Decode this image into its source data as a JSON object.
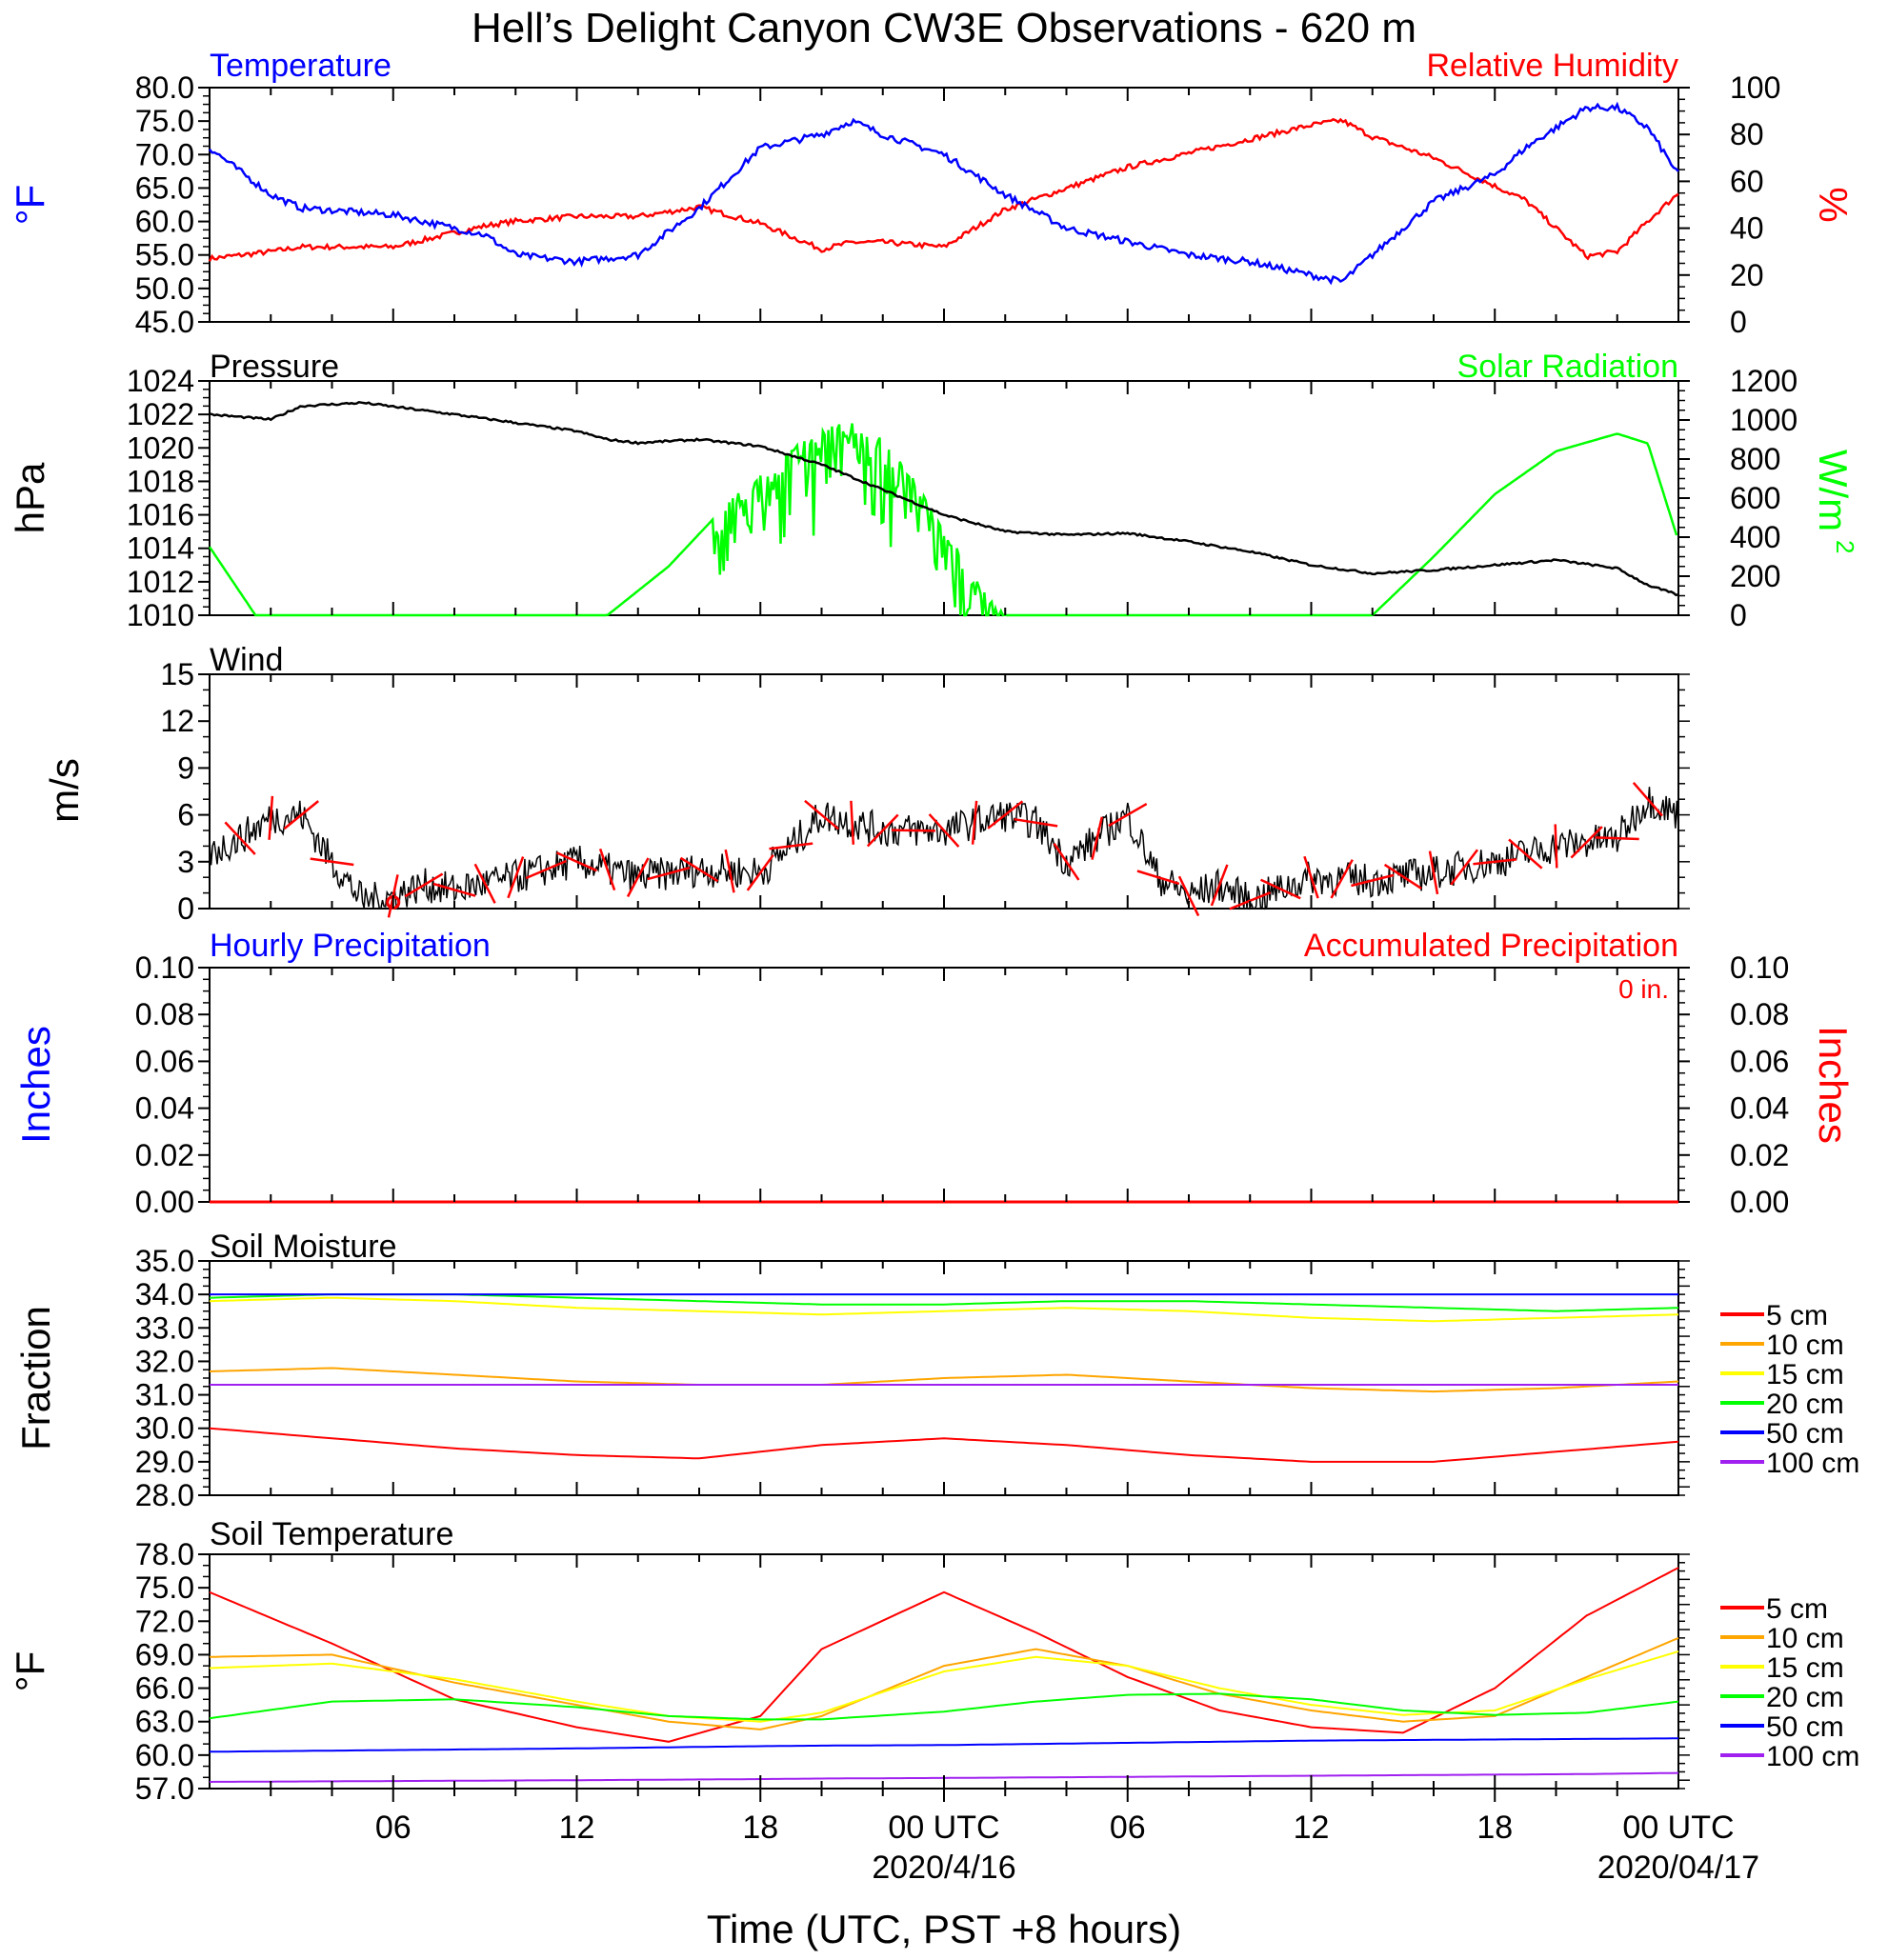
{
  "title": "Hell’s Delight Canyon CW3E Observations - 620 m",
  "x_axis": {
    "label": "Time (UTC, PST +8 hours)",
    "ticks": [
      {
        "hour": 6,
        "label": "06"
      },
      {
        "hour": 12,
        "label": "12"
      },
      {
        "hour": 18,
        "label": "18"
      },
      {
        "hour": 24,
        "label": "00 UTC",
        "sublabel": "2020/4/16"
      },
      {
        "hour": 30,
        "label": "06"
      },
      {
        "hour": 36,
        "label": "12"
      },
      {
        "hour": 42,
        "label": "18"
      },
      {
        "hour": 48,
        "label": "00 UTC",
        "sublabel": "2020/04/17"
      }
    ]
  },
  "panels": {
    "temp_rh": {
      "left_title": "Temperature",
      "right_title": "Relative Humidity",
      "left_units": "°F",
      "right_units": "%",
      "left_ticks": [
        "45.0",
        "50.0",
        "55.0",
        "60.0",
        "65.0",
        "70.0",
        "75.0",
        "80.0"
      ],
      "right_ticks": [
        "0",
        "20",
        "40",
        "60",
        "80",
        "100"
      ]
    },
    "pressure_solar": {
      "left_title": "Pressure",
      "right_title": "Solar Radiation",
      "left_units": "hPa",
      "right_units": "W/m",
      "right_units_sup": "2",
      "left_ticks": [
        "1010",
        "1012",
        "1014",
        "1016",
        "1018",
        "1020",
        "1022",
        "1024"
      ],
      "right_ticks": [
        "0",
        "200",
        "400",
        "600",
        "800",
        "1000",
        "1200"
      ]
    },
    "wind": {
      "left_title": "Wind",
      "left_units": "m/s",
      "left_ticks": [
        "0",
        "3",
        "6",
        "9",
        "12",
        "15"
      ]
    },
    "precip": {
      "left_title": "Hourly Precipitation",
      "right_title": "Accumulated Precipitation",
      "left_units": "Inches",
      "right_units": "Inches",
      "annotation": "0 in.",
      "left_ticks": [
        "0.00",
        "0.02",
        "0.04",
        "0.06",
        "0.08",
        "0.10"
      ],
      "right_ticks": [
        "0.00",
        "0.02",
        "0.04",
        "0.06",
        "0.08",
        "0.10"
      ]
    },
    "soil_moisture": {
      "left_title": "Soil Moisture",
      "left_units": "Fraction",
      "left_ticks": [
        "28.0",
        "29.0",
        "30.0",
        "31.0",
        "32.0",
        "33.0",
        "34.0",
        "35.0"
      ],
      "legend": [
        "5 cm",
        "10 cm",
        "15 cm",
        "20 cm",
        "50 cm",
        "100 cm"
      ]
    },
    "soil_temp": {
      "left_title": "Soil Temperature",
      "left_units": "°F",
      "left_ticks": [
        "57.0",
        "60.0",
        "63.0",
        "66.0",
        "69.0",
        "72.0",
        "75.0",
        "78.0"
      ],
      "legend": [
        "5 cm",
        "10 cm",
        "15 cm",
        "20 cm",
        "50 cm",
        "100 cm"
      ]
    }
  },
  "colors": {
    "temperature": "#0000ff",
    "humidity": "#ff0000",
    "pressure": "#000000",
    "solar": "#00ff00",
    "wind": "#000000",
    "barb": "#ff0000",
    "depth_5": "#ff0000",
    "depth_10": "#ffa500",
    "depth_15": "#ffff00",
    "depth_20": "#00ff00",
    "depth_50": "#0000ff",
    "depth_100": "#a020f0"
  },
  "chart_data": [
    {
      "type": "line",
      "title": "Temperature / Relative Humidity",
      "x": [
        0,
        2,
        3,
        6,
        9,
        10,
        12,
        14,
        16,
        18,
        20,
        21,
        22,
        24,
        26,
        28,
        30,
        32,
        34,
        36,
        37,
        38,
        40,
        42,
        43,
        45,
        46,
        47,
        48
      ],
      "series": [
        {
          "name": "Temperature",
          "axis": "left",
          "values": [
            71,
            64,
            62,
            61,
            58,
            55,
            54,
            55,
            62,
            71,
            73,
            75,
            73,
            70,
            64,
            59,
            57,
            55,
            54,
            52,
            51,
            55,
            63,
            67,
            71,
            77,
            77,
            74,
            67
          ]
        },
        {
          "name": "Relative Humidity",
          "axis": "right",
          "values": [
            27,
            30,
            32,
            32,
            41,
            43,
            45,
            45,
            49,
            42,
            31,
            34,
            34,
            32,
            48,
            57,
            66,
            72,
            78,
            84,
            86,
            79,
            70,
            58,
            52,
            28,
            30,
            43,
            55
          ]
        }
      ],
      "ylim_left": [
        45,
        80
      ],
      "ylim_right": [
        0,
        100
      ]
    },
    {
      "type": "line",
      "title": "Pressure / Solar Radiation",
      "x": [
        0,
        2,
        3,
        5,
        8,
        12,
        13,
        14,
        16,
        18,
        20,
        22,
        24,
        26,
        28,
        30,
        32,
        34,
        36,
        38,
        40,
        42,
        44,
        46,
        47,
        48
      ],
      "series": [
        {
          "name": "Pressure",
          "axis": "left",
          "values": [
            1022,
            1021.7,
            1022.5,
            1022.7,
            1022,
            1021,
            1020.5,
            1020.3,
            1020.5,
            1020.1,
            1019,
            1017.5,
            1016,
            1015,
            1014.8,
            1014.9,
            1014.4,
            1013.8,
            1013,
            1012.5,
            1012.7,
            1013,
            1013.3,
            1012.8,
            1011.8,
            1011.2
          ]
        },
        {
          "name": "Solar Radiation",
          "axis": "right",
          "x": [
            0,
            1.5,
            13,
            15,
            16.5,
            18,
            19,
            20,
            21,
            22,
            23,
            24,
            25,
            26,
            27,
            28,
            29,
            30,
            31,
            32,
            33,
            34,
            35,
            36,
            37,
            38,
            40,
            42,
            44,
            46,
            47,
            48
          ],
          "values": [
            350,
            0,
            0,
            250,
            500,
            750,
            850,
            950,
            1000,
            900,
            700,
            450,
            200,
            0,
            0,
            0,
            0,
            0,
            0,
            0,
            0,
            0,
            0,
            0,
            0,
            0,
            300,
            620,
            840,
            930,
            880,
            380
          ]
        }
      ],
      "ylim_left": [
        1010,
        1024
      ],
      "ylim_right": [
        0,
        1200
      ]
    },
    {
      "type": "line",
      "title": "Wind",
      "x": [
        0,
        1,
        2,
        3,
        4,
        5,
        6,
        7,
        8,
        10,
        12,
        14,
        16,
        18,
        19,
        20,
        22,
        24,
        25,
        26,
        27,
        28,
        29,
        30,
        31,
        32,
        33,
        34,
        36,
        38,
        40,
        42,
        44,
        46,
        47,
        48
      ],
      "series": [
        {
          "name": "Wind",
          "values": [
            3.5,
            4.5,
            5.8,
            6,
            3,
            0.5,
            0.8,
            1.5,
            1.2,
            2,
            3,
            2,
            2.5,
            2.3,
            4,
            6,
            5,
            5,
            5.5,
            6,
            5.5,
            3,
            4.5,
            6,
            2,
            0.8,
            1.5,
            0.5,
            2,
            1.8,
            2.3,
            3,
            4,
            4.5,
            7,
            6
          ]
        }
      ],
      "ylim": [
        0,
        15
      ]
    },
    {
      "type": "line",
      "title": "Hourly Precipitation / Accumulated Precipitation",
      "x": [
        0,
        48
      ],
      "series": [
        {
          "name": "Hourly Precipitation",
          "values": [
            0,
            0
          ]
        },
        {
          "name": "Accumulated Precipitation",
          "values": [
            0,
            0
          ]
        }
      ],
      "ylim": [
        0,
        0.1
      ]
    },
    {
      "type": "line",
      "title": "Soil Moisture",
      "x": [
        0,
        4,
        8,
        12,
        16,
        20,
        24,
        28,
        32,
        36,
        40,
        44,
        48
      ],
      "series": [
        {
          "name": "5 cm",
          "values": [
            30.0,
            29.7,
            29.4,
            29.2,
            29.1,
            29.5,
            29.7,
            29.5,
            29.2,
            29.0,
            29.0,
            29.3,
            29.6
          ]
        },
        {
          "name": "10 cm",
          "values": [
            31.7,
            31.8,
            31.6,
            31.4,
            31.3,
            31.3,
            31.5,
            31.6,
            31.4,
            31.2,
            31.1,
            31.2,
            31.4
          ]
        },
        {
          "name": "15 cm",
          "values": [
            33.8,
            33.9,
            33.8,
            33.6,
            33.5,
            33.4,
            33.5,
            33.6,
            33.5,
            33.3,
            33.2,
            33.3,
            33.4
          ]
        },
        {
          "name": "20 cm",
          "values": [
            33.9,
            34.0,
            34.0,
            33.9,
            33.8,
            33.7,
            33.7,
            33.8,
            33.8,
            33.7,
            33.6,
            33.5,
            33.6
          ]
        },
        {
          "name": "50 cm",
          "values": [
            34.0,
            34.0,
            34.0,
            34.0,
            34.0,
            34.0,
            34.0,
            34.0,
            34.0,
            34.0,
            34.0,
            34.0,
            34.0
          ]
        },
        {
          "name": "100 cm",
          "values": [
            31.3,
            31.3,
            31.3,
            31.3,
            31.3,
            31.3,
            31.3,
            31.3,
            31.3,
            31.3,
            31.3,
            31.3,
            31.3
          ]
        }
      ],
      "ylim": [
        28,
        35
      ]
    },
    {
      "type": "line",
      "title": "Soil Temperature",
      "x": [
        0,
        4,
        8,
        12,
        15,
        18,
        20,
        24,
        27,
        30,
        33,
        36,
        39,
        42,
        45,
        48
      ],
      "series": [
        {
          "name": "5 cm",
          "values": [
            74.6,
            70.0,
            65.0,
            62.5,
            61.2,
            63.5,
            69.5,
            74.6,
            71.0,
            67.0,
            64.0,
            62.5,
            62.0,
            66.0,
            72.5,
            76.8
          ]
        },
        {
          "name": "10 cm",
          "values": [
            68.8,
            69.0,
            66.5,
            64.5,
            63.0,
            62.3,
            63.5,
            68.0,
            69.5,
            68.0,
            65.5,
            64.0,
            63.0,
            63.5,
            67.0,
            70.5
          ]
        },
        {
          "name": "15 cm",
          "values": [
            67.8,
            68.2,
            66.8,
            64.8,
            63.5,
            63.0,
            63.8,
            67.5,
            68.8,
            68.0,
            66.0,
            64.5,
            63.6,
            64.0,
            66.8,
            69.3
          ]
        },
        {
          "name": "20 cm",
          "values": [
            63.3,
            64.8,
            65.0,
            64.3,
            63.5,
            63.2,
            63.2,
            63.9,
            64.8,
            65.4,
            65.5,
            65.0,
            64.0,
            63.6,
            63.8,
            64.8
          ]
        },
        {
          "name": "50 cm",
          "values": [
            60.3,
            60.4,
            60.5,
            60.6,
            60.7,
            60.8,
            60.85,
            60.9,
            61.0,
            61.1,
            61.2,
            61.3,
            61.35,
            61.4,
            61.45,
            61.5
          ]
        },
        {
          "name": "100 cm",
          "values": [
            57.6,
            57.65,
            57.7,
            57.75,
            57.8,
            57.85,
            57.9,
            57.95,
            58.0,
            58.05,
            58.1,
            58.15,
            58.2,
            58.25,
            58.3,
            58.4
          ]
        }
      ],
      "ylim": [
        57,
        78
      ]
    }
  ]
}
